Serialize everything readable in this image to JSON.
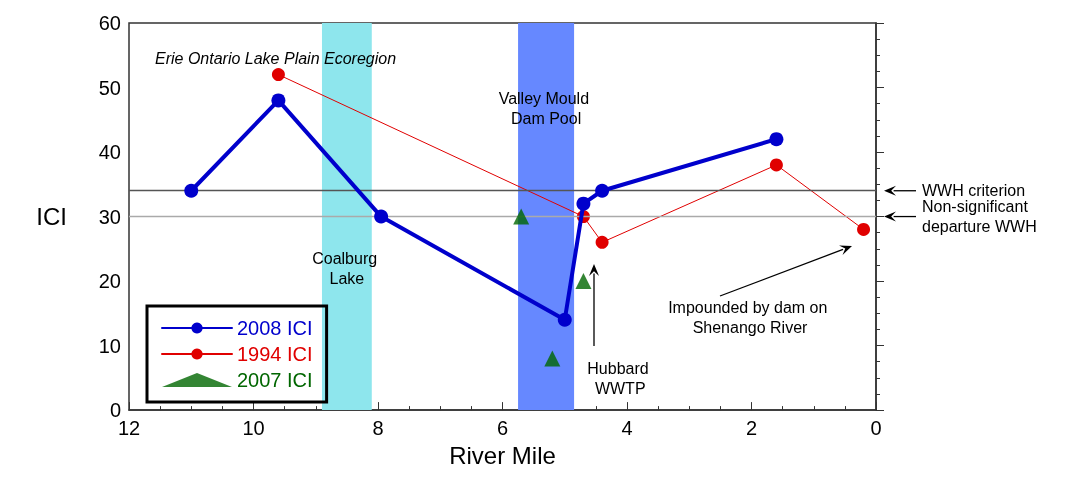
{
  "chart_data": {
    "type": "line",
    "xlabel": "River Mile",
    "ylabel": "ICI",
    "xlim": [
      12,
      0
    ],
    "xticks": [
      12,
      10,
      8,
      6,
      4,
      2,
      0
    ],
    "ylim": [
      0,
      60
    ],
    "yticks": [
      0,
      10,
      20,
      30,
      40,
      50,
      60
    ],
    "grid": false,
    "legend": "bottom left",
    "series": [
      {
        "name": "2008 ICI",
        "color": "#0000cc",
        "marker": "circle",
        "line_style": "solid",
        "x": [
          11,
          9.6,
          7.95,
          5.0,
          4.7,
          4.4,
          1.6
        ],
        "values": [
          34,
          48,
          30,
          14,
          32,
          34,
          42
        ]
      },
      {
        "name": "1994 ICI",
        "color": "#e00000",
        "marker": "circle",
        "line_style": "solid",
        "x": [
          9.6,
          4.7,
          4.4,
          1.6,
          0.2
        ],
        "values": [
          52,
          30,
          26,
          38,
          28
        ]
      },
      {
        "name": "2007 ICI",
        "type": "scatter",
        "color": "#006600",
        "marker": "triangle",
        "x": [
          5.7,
          5.2,
          4.7
        ],
        "values": [
          30,
          8,
          20
        ]
      }
    ],
    "ref_lines": [
      {
        "axis": "y",
        "value": 34,
        "label": "WWH criterion",
        "color": "#555555"
      },
      {
        "axis": "y",
        "value": 30,
        "label": "Non-significant departure WWH",
        "color": "#aaaaaa"
      }
    ],
    "bands": [
      {
        "axis": "x",
        "from": 8.9,
        "to": 8.1,
        "label": "Coalburg Lake",
        "color": "#8ee6ed"
      },
      {
        "axis": "x",
        "from": 5.75,
        "to": 4.85,
        "label": "Valley Mould Dam Pool",
        "color": "#6688ff"
      }
    ],
    "annotations": [
      "Erie Ontario Lake Plain Ecoregion",
      "Hubbard WWTP",
      "Impounded by dam on Shenango River"
    ]
  }
}
